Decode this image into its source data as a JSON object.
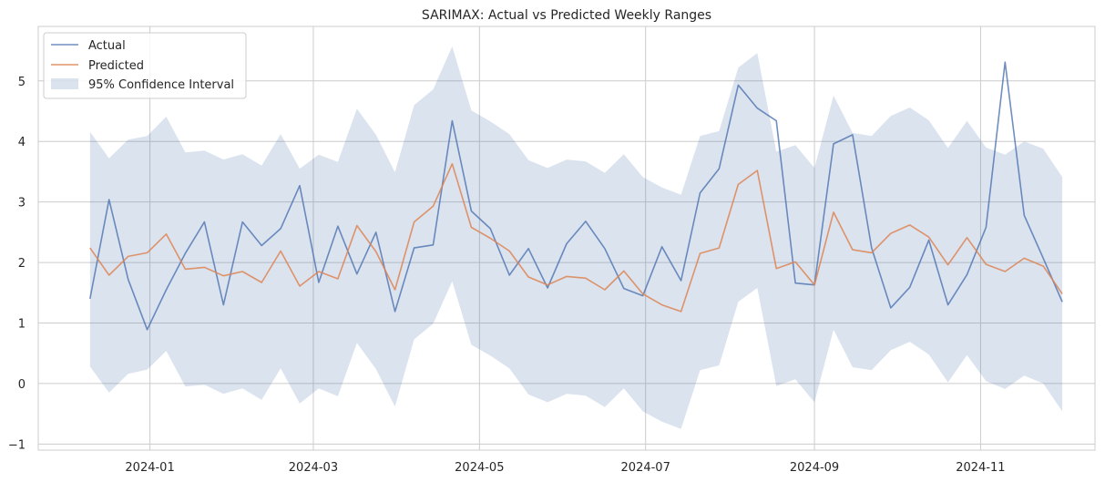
{
  "chart_data": {
    "type": "line",
    "title": "SARIMAX: Actual vs Predicted Weekly Ranges",
    "xlabel": "",
    "ylabel": "",
    "ylim": [
      -1.1,
      5.9
    ],
    "xlim": [
      "2023-11-21",
      "2024-12-13"
    ],
    "grid": true,
    "legend_position": "top-left",
    "x_tick_labels": [
      "2024-01",
      "2024-03",
      "2024-05",
      "2024-07",
      "2024-09",
      "2024-11"
    ],
    "x_tick_dates": [
      "2024-01-01",
      "2024-03-01",
      "2024-05-01",
      "2024-07-01",
      "2024-09-01",
      "2024-11-01"
    ],
    "y_tick_labels": [
      "−1",
      "0",
      "1",
      "2",
      "3",
      "4",
      "5"
    ],
    "y_tick_values": [
      -1,
      0,
      1,
      2,
      3,
      4,
      5
    ],
    "x": [
      "2023-12-10",
      "2023-12-17",
      "2023-12-24",
      "2023-12-31",
      "2024-01-07",
      "2024-01-14",
      "2024-01-21",
      "2024-01-28",
      "2024-02-04",
      "2024-02-11",
      "2024-02-18",
      "2024-02-25",
      "2024-03-03",
      "2024-03-10",
      "2024-03-17",
      "2024-03-24",
      "2024-03-31",
      "2024-04-07",
      "2024-04-14",
      "2024-04-21",
      "2024-04-28",
      "2024-05-05",
      "2024-05-12",
      "2024-05-19",
      "2024-05-26",
      "2024-06-02",
      "2024-06-09",
      "2024-06-16",
      "2024-06-23",
      "2024-06-30",
      "2024-07-07",
      "2024-07-14",
      "2024-07-21",
      "2024-07-28",
      "2024-08-04",
      "2024-08-11",
      "2024-08-18",
      "2024-08-25",
      "2024-09-01",
      "2024-09-08",
      "2024-09-15",
      "2024-09-22",
      "2024-09-29",
      "2024-10-06",
      "2024-10-13",
      "2024-10-20",
      "2024-10-27",
      "2024-11-03",
      "2024-11-10",
      "2024-11-17",
      "2024-11-24",
      "2024-12-01"
    ],
    "series": [
      {
        "name": "Actual",
        "color": "#4c72b0",
        "values": [
          1.4,
          3.04,
          1.72,
          0.89,
          1.55,
          2.15,
          2.67,
          1.3,
          2.67,
          2.28,
          2.56,
          3.27,
          1.67,
          2.6,
          1.81,
          2.5,
          1.19,
          2.24,
          2.29,
          4.34,
          2.85,
          2.56,
          1.79,
          2.23,
          1.58,
          2.31,
          2.68,
          2.23,
          1.57,
          1.45,
          2.26,
          1.7,
          3.15,
          3.55,
          4.93,
          4.55,
          4.34,
          1.66,
          1.63,
          3.96,
          4.11,
          2.24,
          1.25,
          1.59,
          2.37,
          1.3,
          1.8,
          2.58,
          5.31,
          2.78,
          2.07,
          1.35
        ]
      },
      {
        "name": "Predicted",
        "color": "#dd8452",
        "values": [
          2.24,
          1.79,
          2.1,
          2.16,
          2.47,
          1.89,
          1.92,
          1.78,
          1.85,
          1.67,
          2.19,
          1.61,
          1.85,
          1.73,
          2.61,
          2.18,
          1.55,
          2.67,
          2.93,
          3.63,
          2.58,
          2.4,
          2.19,
          1.76,
          1.63,
          1.77,
          1.74,
          1.55,
          1.86,
          1.48,
          1.3,
          1.19,
          2.15,
          2.24,
          3.29,
          3.52,
          1.9,
          2.01,
          1.63,
          2.83,
          2.21,
          2.16,
          2.48,
          2.62,
          2.42,
          1.96,
          2.41,
          1.97,
          1.85,
          2.07,
          1.94,
          1.48
        ]
      }
    ],
    "confidence_interval": {
      "name": "95% Confidence Interval",
      "color": "#4c72b0",
      "upper": [
        4.16,
        3.72,
        4.03,
        4.09,
        4.41,
        3.82,
        3.85,
        3.7,
        3.79,
        3.6,
        4.12,
        3.55,
        3.78,
        3.66,
        4.54,
        4.11,
        3.49,
        4.6,
        4.86,
        5.57,
        4.51,
        4.33,
        4.12,
        3.69,
        3.56,
        3.7,
        3.67,
        3.48,
        3.79,
        3.41,
        3.24,
        3.12,
        4.09,
        4.17,
        5.22,
        5.46,
        3.83,
        3.94,
        3.56,
        4.76,
        4.14,
        4.09,
        4.42,
        4.56,
        4.35,
        3.89,
        4.34,
        3.9,
        3.78,
        4.0,
        3.88,
        3.41
      ],
      "lower": [
        0.28,
        -0.15,
        0.16,
        0.23,
        0.54,
        -0.05,
        -0.02,
        -0.17,
        -0.08,
        -0.27,
        0.25,
        -0.33,
        -0.08,
        -0.21,
        0.67,
        0.24,
        -0.38,
        0.73,
        0.99,
        1.69,
        0.64,
        0.46,
        0.25,
        -0.18,
        -0.31,
        -0.17,
        -0.2,
        -0.39,
        -0.08,
        -0.46,
        -0.63,
        -0.75,
        0.22,
        0.3,
        1.35,
        1.58,
        -0.04,
        0.07,
        -0.31,
        0.89,
        0.27,
        0.22,
        0.55,
        0.69,
        0.48,
        0.02,
        0.47,
        0.04,
        -0.09,
        0.13,
        0.0,
        -0.46
      ]
    }
  }
}
